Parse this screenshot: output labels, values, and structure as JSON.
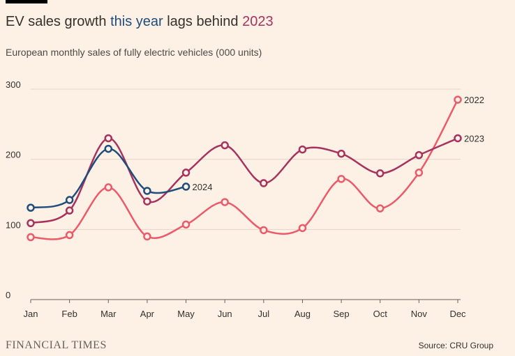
{
  "chart_data": {
    "type": "line",
    "title_parts": [
      {
        "text": "EV sales growth ",
        "color": "#33302e"
      },
      {
        "text": "this year",
        "color": "#204d7a"
      },
      {
        "text": " lags behind ",
        "color": "#33302e"
      },
      {
        "text": "2023",
        "color": "#a8325e"
      }
    ],
    "subtitle": "European monthly sales of fully electric vehicles (000 units)",
    "categories": [
      "Jan",
      "Feb",
      "Mar",
      "Apr",
      "May",
      "Jun",
      "Jul",
      "Aug",
      "Sep",
      "Oct",
      "Nov",
      "Dec"
    ],
    "series": [
      {
        "name": "2022",
        "color": "#ec5a6a",
        "values": [
          89,
          92,
          160,
          90,
          107,
          139,
          99,
          102,
          172,
          130,
          181,
          285
        ]
      },
      {
        "name": "2023",
        "color": "#a8325e",
        "values": [
          109,
          127,
          230,
          140,
          181,
          220,
          166,
          214,
          208,
          180,
          206,
          230
        ]
      },
      {
        "name": "2024",
        "color": "#204d7a",
        "values": [
          131,
          142,
          215,
          155,
          161,
          null,
          null,
          null,
          null,
          null,
          null,
          null
        ]
      }
    ],
    "ylim": [
      0,
      300
    ],
    "yticks": [
      0,
      100,
      200,
      300
    ],
    "grid": true,
    "publisher": "FINANCIAL TIMES",
    "source": "Source: CRU Group"
  }
}
